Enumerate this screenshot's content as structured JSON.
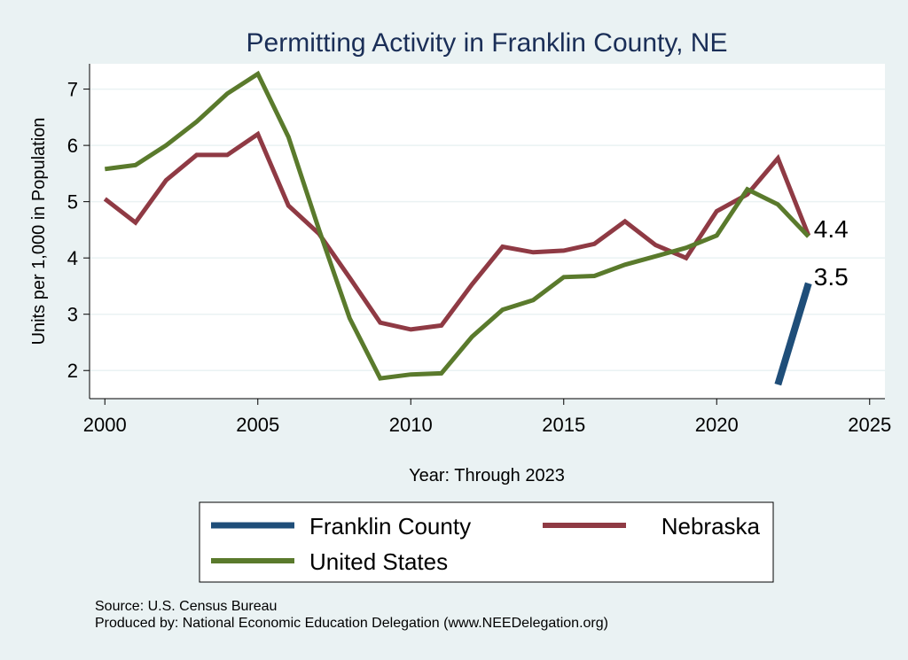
{
  "chart_data": {
    "type": "line",
    "title": "Permitting Activity in Franklin County, NE",
    "xlabel": "Year: Through 2023",
    "ylabel": "Units per 1,000 in Population",
    "xlim": [
      1999.5,
      2025.5
    ],
    "ylim": [
      1.5,
      7.45
    ],
    "x_ticks": [
      2000,
      2005,
      2010,
      2015,
      2020,
      2025
    ],
    "y_ticks": [
      2,
      3,
      4,
      5,
      6,
      7
    ],
    "grid": true,
    "legend_position": "bottom",
    "colors": {
      "franklin": "#1f4e79",
      "nebraska": "#8f3a44",
      "united_states": "#5a7a2c"
    },
    "series": [
      {
        "key": "franklin",
        "name": "Franklin County",
        "x": [
          2022,
          2023
        ],
        "values": [
          1.75,
          3.55
        ]
      },
      {
        "key": "nebraska",
        "name": "Nebraska",
        "x": [
          2000,
          2001,
          2002,
          2003,
          2004,
          2005,
          2006,
          2007,
          2008,
          2009,
          2010,
          2011,
          2012,
          2013,
          2014,
          2015,
          2016,
          2017,
          2018,
          2019,
          2020,
          2021,
          2022,
          2023
        ],
        "values": [
          5.05,
          4.63,
          5.38,
          5.83,
          5.83,
          6.2,
          4.93,
          4.43,
          3.65,
          2.85,
          2.73,
          2.8,
          3.53,
          4.2,
          4.1,
          4.13,
          4.25,
          4.65,
          4.23,
          4.0,
          4.83,
          5.13,
          5.77,
          4.4
        ]
      },
      {
        "key": "united_states",
        "name": "United States",
        "x": [
          2000,
          2001,
          2002,
          2003,
          2004,
          2005,
          2006,
          2007,
          2008,
          2009,
          2010,
          2011,
          2012,
          2013,
          2014,
          2015,
          2016,
          2017,
          2018,
          2019,
          2020,
          2021,
          2022,
          2023
        ],
        "values": [
          5.58,
          5.65,
          6.0,
          6.42,
          6.92,
          7.27,
          6.15,
          4.5,
          2.93,
          1.86,
          1.93,
          1.95,
          2.6,
          3.08,
          3.25,
          3.66,
          3.68,
          3.88,
          4.03,
          4.18,
          4.4,
          5.22,
          4.95,
          4.38
        ]
      }
    ],
    "end_labels": [
      {
        "series": "nebraska",
        "text": "4.4"
      },
      {
        "series": "franklin",
        "text": "3.5"
      }
    ],
    "footnotes": {
      "source": "Source: U.S. Census Bureau",
      "produced": "Produced by: National Economic Education Delegation (www.NEEDelegation.org)"
    }
  }
}
